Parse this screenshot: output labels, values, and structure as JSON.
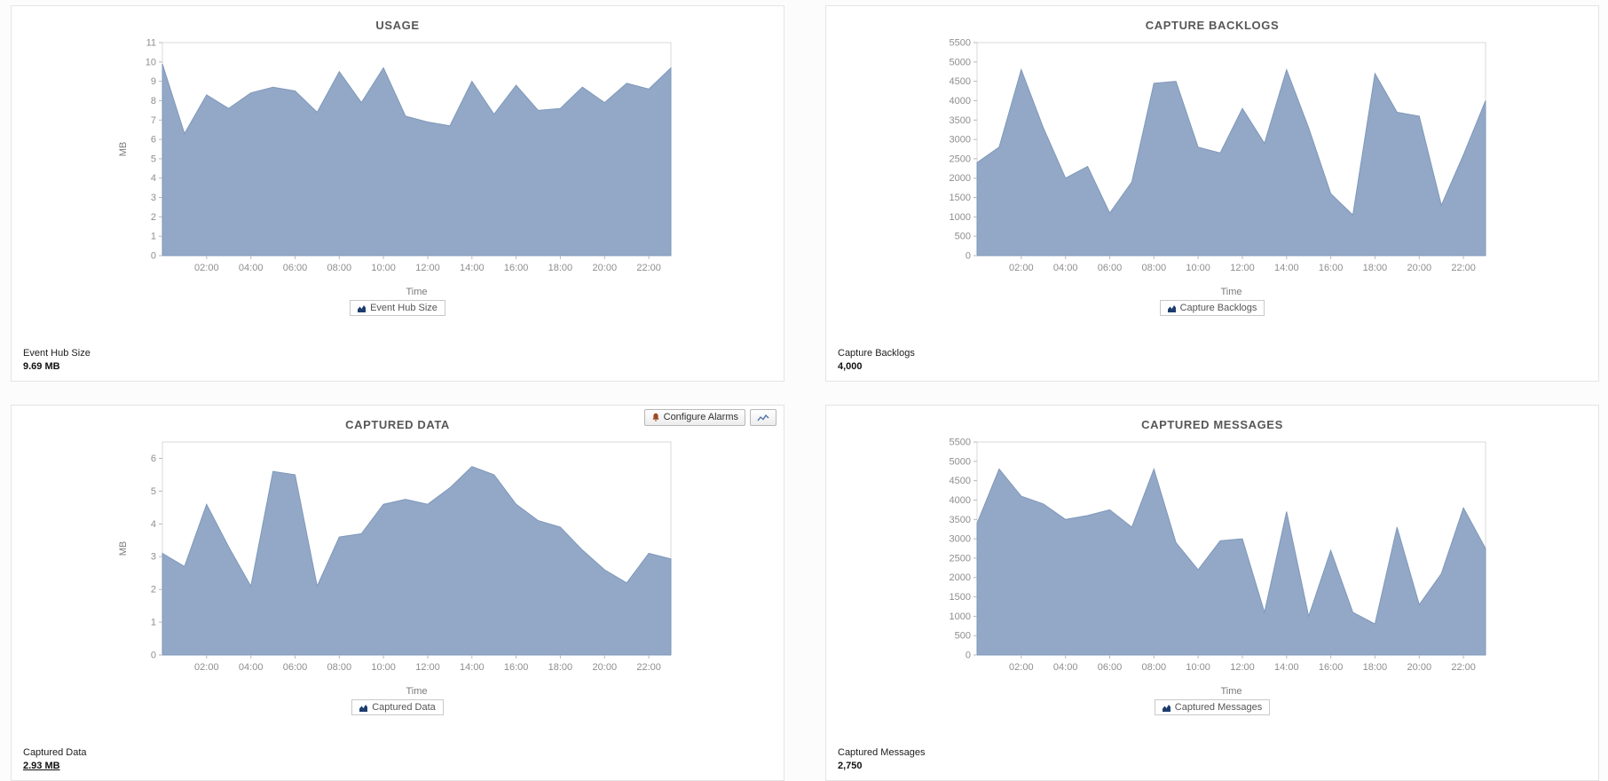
{
  "colors": {
    "area_fill": "#92a8c6",
    "area_stroke": "#7f98ba",
    "legend_icon": "#1d3e6e",
    "panel_border": "#e4e4e4"
  },
  "toolbar": {
    "configure_alarms_label": "Configure Alarms"
  },
  "panels": [
    {
      "stat_label": "Event Hub Size",
      "stat_value": "9.69 MB"
    },
    {
      "stat_label": "Capture Backlogs",
      "stat_value": "4,000"
    },
    {
      "stat_label": "Captured Data",
      "stat_value": "2.93 MB"
    },
    {
      "stat_label": "Captured Messages",
      "stat_value": "2,750"
    }
  ],
  "chart_data": [
    {
      "type": "area",
      "title": "USAGE",
      "series_name": "Event Hub Size",
      "xlabel": "Time",
      "ylabel": "MB",
      "xlim": [
        0,
        23
      ],
      "ylim": [
        0,
        11
      ],
      "ytick_step": 1,
      "ytick_max": 11,
      "grid": false,
      "legend_position": "bottom",
      "x": [
        0,
        1,
        2,
        3,
        4,
        5,
        6,
        7,
        8,
        9,
        10,
        11,
        12,
        13,
        14,
        15,
        16,
        17,
        18,
        19,
        20,
        21,
        22,
        23
      ],
      "values": [
        9.9,
        6.3,
        8.3,
        7.6,
        8.4,
        8.7,
        8.5,
        7.4,
        9.5,
        7.9,
        9.7,
        7.2,
        6.9,
        6.7,
        9.0,
        7.3,
        8.8,
        7.5,
        7.6,
        8.7,
        7.9,
        8.9,
        8.6,
        9.69
      ],
      "x_ticks": {
        "hours": [
          2,
          4,
          6,
          8,
          10,
          12,
          14,
          16,
          18,
          20,
          22
        ],
        "labels": [
          "02:00",
          "04:00",
          "06:00",
          "08:00",
          "10:00",
          "12:00",
          "14:00",
          "16:00",
          "18:00",
          "20:00",
          "22:00"
        ]
      }
    },
    {
      "type": "area",
      "title": "CAPTURE BACKLOGS",
      "series_name": "Capture Backlogs",
      "xlabel": "Time",
      "ylabel": "",
      "xlim": [
        0,
        23
      ],
      "ylim": [
        0,
        5500
      ],
      "ytick_step": 500,
      "ytick_max": 5500,
      "grid": false,
      "legend_position": "bottom",
      "x": [
        0,
        1,
        2,
        3,
        4,
        5,
        6,
        7,
        8,
        9,
        10,
        11,
        12,
        13,
        14,
        15,
        16,
        17,
        18,
        19,
        20,
        21,
        22,
        23
      ],
      "values": [
        2400,
        2800,
        4800,
        3300,
        2000,
        2300,
        1100,
        1900,
        4450,
        4500,
        2800,
        2650,
        3800,
        2900,
        4800,
        3300,
        1600,
        1050,
        4700,
        3700,
        3600,
        1300,
        2600,
        4000
      ],
      "x_ticks": {
        "hours": [
          2,
          4,
          6,
          8,
          10,
          12,
          14,
          16,
          18,
          20,
          22
        ],
        "labels": [
          "02:00",
          "04:00",
          "06:00",
          "08:00",
          "10:00",
          "12:00",
          "14:00",
          "16:00",
          "18:00",
          "20:00",
          "22:00"
        ]
      }
    },
    {
      "type": "area",
      "title": "CAPTURED DATA",
      "series_name": "Captured Data",
      "xlabel": "Time",
      "ylabel": "MB",
      "xlim": [
        0,
        23
      ],
      "ylim": [
        0,
        6.5
      ],
      "ytick_step": 1,
      "ytick_max": 6,
      "grid": false,
      "legend_position": "bottom",
      "x": [
        0,
        1,
        2,
        3,
        4,
        5,
        6,
        7,
        8,
        9,
        10,
        11,
        12,
        13,
        14,
        15,
        16,
        17,
        18,
        19,
        20,
        21,
        22,
        23
      ],
      "values": [
        3.1,
        2.7,
        4.6,
        3.3,
        2.1,
        5.6,
        5.5,
        2.1,
        3.6,
        3.7,
        4.6,
        4.75,
        4.6,
        5.1,
        5.75,
        5.5,
        4.6,
        4.1,
        3.9,
        3.2,
        2.6,
        2.2,
        3.1,
        2.93
      ],
      "x_ticks": {
        "hours": [
          2,
          4,
          6,
          8,
          10,
          12,
          14,
          16,
          18,
          20,
          22
        ],
        "labels": [
          "02:00",
          "04:00",
          "06:00",
          "08:00",
          "10:00",
          "12:00",
          "14:00",
          "16:00",
          "18:00",
          "20:00",
          "22:00"
        ]
      }
    },
    {
      "type": "area",
      "title": "CAPTURED MESSAGES",
      "series_name": "Captured Messages",
      "xlabel": "Time",
      "ylabel": "",
      "xlim": [
        0,
        23
      ],
      "ylim": [
        0,
        5500
      ],
      "ytick_step": 500,
      "ytick_max": 5500,
      "grid": false,
      "legend_position": "bottom",
      "x": [
        0,
        1,
        2,
        3,
        4,
        5,
        6,
        7,
        8,
        9,
        10,
        11,
        12,
        13,
        14,
        15,
        16,
        17,
        18,
        19,
        20,
        21,
        22,
        23
      ],
      "values": [
        3400,
        4800,
        4100,
        3900,
        3500,
        3600,
        3750,
        3300,
        4800,
        2900,
        2200,
        2950,
        3000,
        1100,
        3700,
        1000,
        2700,
        1100,
        800,
        3300,
        1300,
        2100,
        3800,
        2750
      ],
      "x_ticks": {
        "hours": [
          2,
          4,
          6,
          8,
          10,
          12,
          14,
          16,
          18,
          20,
          22
        ],
        "labels": [
          "02:00",
          "04:00",
          "06:00",
          "08:00",
          "10:00",
          "12:00",
          "14:00",
          "16:00",
          "18:00",
          "20:00",
          "22:00"
        ]
      }
    }
  ]
}
